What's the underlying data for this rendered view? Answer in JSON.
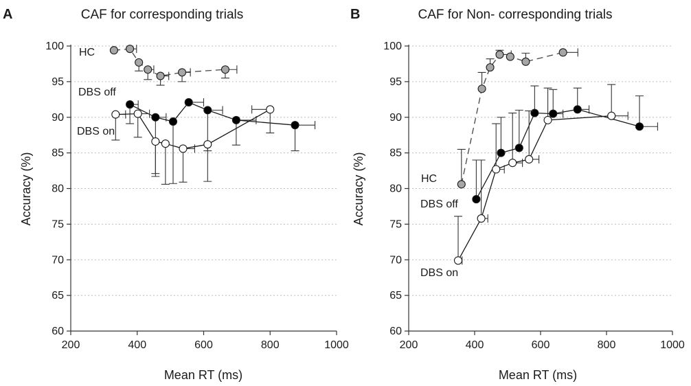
{
  "chart_data": [
    {
      "type": "line",
      "panel": "A",
      "title": "CAF for corresponding trials",
      "xlabel": "Mean RT (ms)",
      "ylabel": "Accuracy (%)",
      "xlim": [
        200,
        1000
      ],
      "ylim": [
        60,
        100
      ],
      "xticks": [
        200,
        400,
        600,
        800,
        1000
      ],
      "yticks": [
        60,
        65,
        70,
        75,
        80,
        85,
        90,
        95,
        100
      ],
      "grid": "horizontal dotted",
      "series": [
        {
          "name": "HC",
          "line_style": "dashed",
          "marker_color": "#a6a6a6",
          "x": [
            330,
            378,
            405,
            432,
            470,
            535,
            665
          ],
          "y": [
            99.4,
            99.6,
            97.7,
            96.7,
            95.8,
            96.3,
            96.7
          ],
          "y_err_up": [
            0,
            0,
            0,
            0,
            0,
            0,
            0
          ],
          "y_err_down": [
            0,
            0,
            1.2,
            1.4,
            1.3,
            1.3,
            1.2
          ],
          "x_err_left": [
            0,
            0,
            0,
            0,
            0,
            0,
            0
          ],
          "x_err_right": [
            0,
            20,
            0,
            18,
            25,
            25,
            35
          ]
        },
        {
          "name": "DBS off",
          "line_style": "solid",
          "marker_color": "#000000",
          "x": [
            378,
            455,
            508,
            555,
            612,
            698,
            875
          ],
          "y": [
            91.8,
            90.0,
            89.4,
            92.1,
            91.0,
            89.6,
            88.9
          ],
          "y_err_up": [
            0,
            0,
            0,
            0,
            0,
            0,
            0
          ],
          "y_err_down": [
            2.7,
            8.3,
            8.7,
            0,
            5.7,
            3.5,
            3.6
          ],
          "x_err_left": [
            0,
            0,
            0,
            0,
            0,
            0,
            0
          ],
          "x_err_right": [
            25,
            32,
            0,
            45,
            45,
            60,
            60
          ]
        },
        {
          "name": "DBS on",
          "line_style": "solid",
          "marker_color": "#ffffff",
          "x": [
            335,
            402,
            455,
            485,
            538,
            612,
            800
          ],
          "y": [
            90.4,
            90.5,
            86.6,
            86.3,
            85.6,
            86.2,
            91.1
          ],
          "y_err_up": [
            0,
            0,
            0,
            0,
            0,
            0,
            0
          ],
          "y_err_down": [
            3.6,
            3.3,
            4.5,
            5.7,
            4.7,
            5.2,
            3.3
          ],
          "x_err_left": [
            0,
            0,
            0,
            0,
            0,
            0,
            55
          ],
          "x_err_right": [
            30,
            35,
            0,
            0,
            35,
            0,
            0
          ]
        }
      ],
      "labels": [
        "HC",
        "DBS off",
        "DBS on"
      ]
    },
    {
      "type": "line",
      "panel": "B",
      "title": "CAF for Non- corresponding trials",
      "xlabel": "Mean RT (ms)",
      "ylabel": "Accuracy (%)",
      "xlim": [
        200,
        1000
      ],
      "ylim": [
        60,
        100
      ],
      "xticks": [
        200,
        400,
        600,
        800,
        1000
      ],
      "yticks": [
        60,
        65,
        70,
        75,
        80,
        85,
        90,
        95,
        100
      ],
      "grid": "horizontal dotted",
      "series": [
        {
          "name": "HC",
          "line_style": "dashed",
          "marker_color": "#a6a6a6",
          "x": [
            360,
            422,
            447,
            476,
            508,
            555,
            668
          ],
          "y": [
            80.6,
            94.0,
            97.0,
            98.8,
            98.5,
            97.8,
            99.1
          ],
          "y_err_up": [
            4.9,
            2.3,
            1.2,
            0.6,
            0,
            1.2,
            0
          ],
          "y_err_down": [
            0,
            0,
            0,
            0,
            0,
            0,
            0
          ],
          "x_err_left": [
            0,
            0,
            0,
            0,
            0,
            0,
            0
          ],
          "x_err_right": [
            0,
            0,
            0,
            35,
            0,
            0,
            45
          ]
        },
        {
          "name": "DBS off",
          "line_style": "solid",
          "marker_color": "#000000",
          "x": [
            405,
            480,
            535,
            582,
            638,
            712,
            900
          ],
          "y": [
            78.5,
            85.0,
            85.7,
            90.6,
            90.5,
            91.1,
            88.7
          ],
          "y_err_up": [
            5.5,
            5.0,
            5.3,
            3.8,
            3.4,
            3.0,
            4.3
          ],
          "y_err_down": [
            0,
            0,
            0,
            0,
            0,
            0,
            0
          ],
          "x_err_left": [
            0,
            0,
            0,
            0,
            0,
            0,
            0
          ],
          "x_err_right": [
            0,
            0,
            0,
            0,
            30,
            35,
            55
          ]
        },
        {
          "name": "DBS on",
          "line_style": "solid",
          "marker_color": "#ffffff",
          "x": [
            350,
            420,
            465,
            515,
            565,
            622,
            815
          ],
          "y": [
            69.9,
            75.8,
            82.7,
            83.6,
            84.1,
            89.6,
            90.2
          ],
          "y_err_up": [
            6.2,
            8.2,
            6.4,
            7.0,
            6.8,
            4.5,
            4.4
          ],
          "y_err_down": [
            0,
            0,
            0,
            0,
            0,
            0,
            0
          ],
          "x_err_left": [
            0,
            0,
            0,
            0,
            0,
            0,
            0
          ],
          "x_err_right": [
            12,
            20,
            25,
            30,
            30,
            0,
            50
          ]
        }
      ],
      "labels": [
        "HC",
        "DBS off",
        "DBS on"
      ]
    }
  ]
}
